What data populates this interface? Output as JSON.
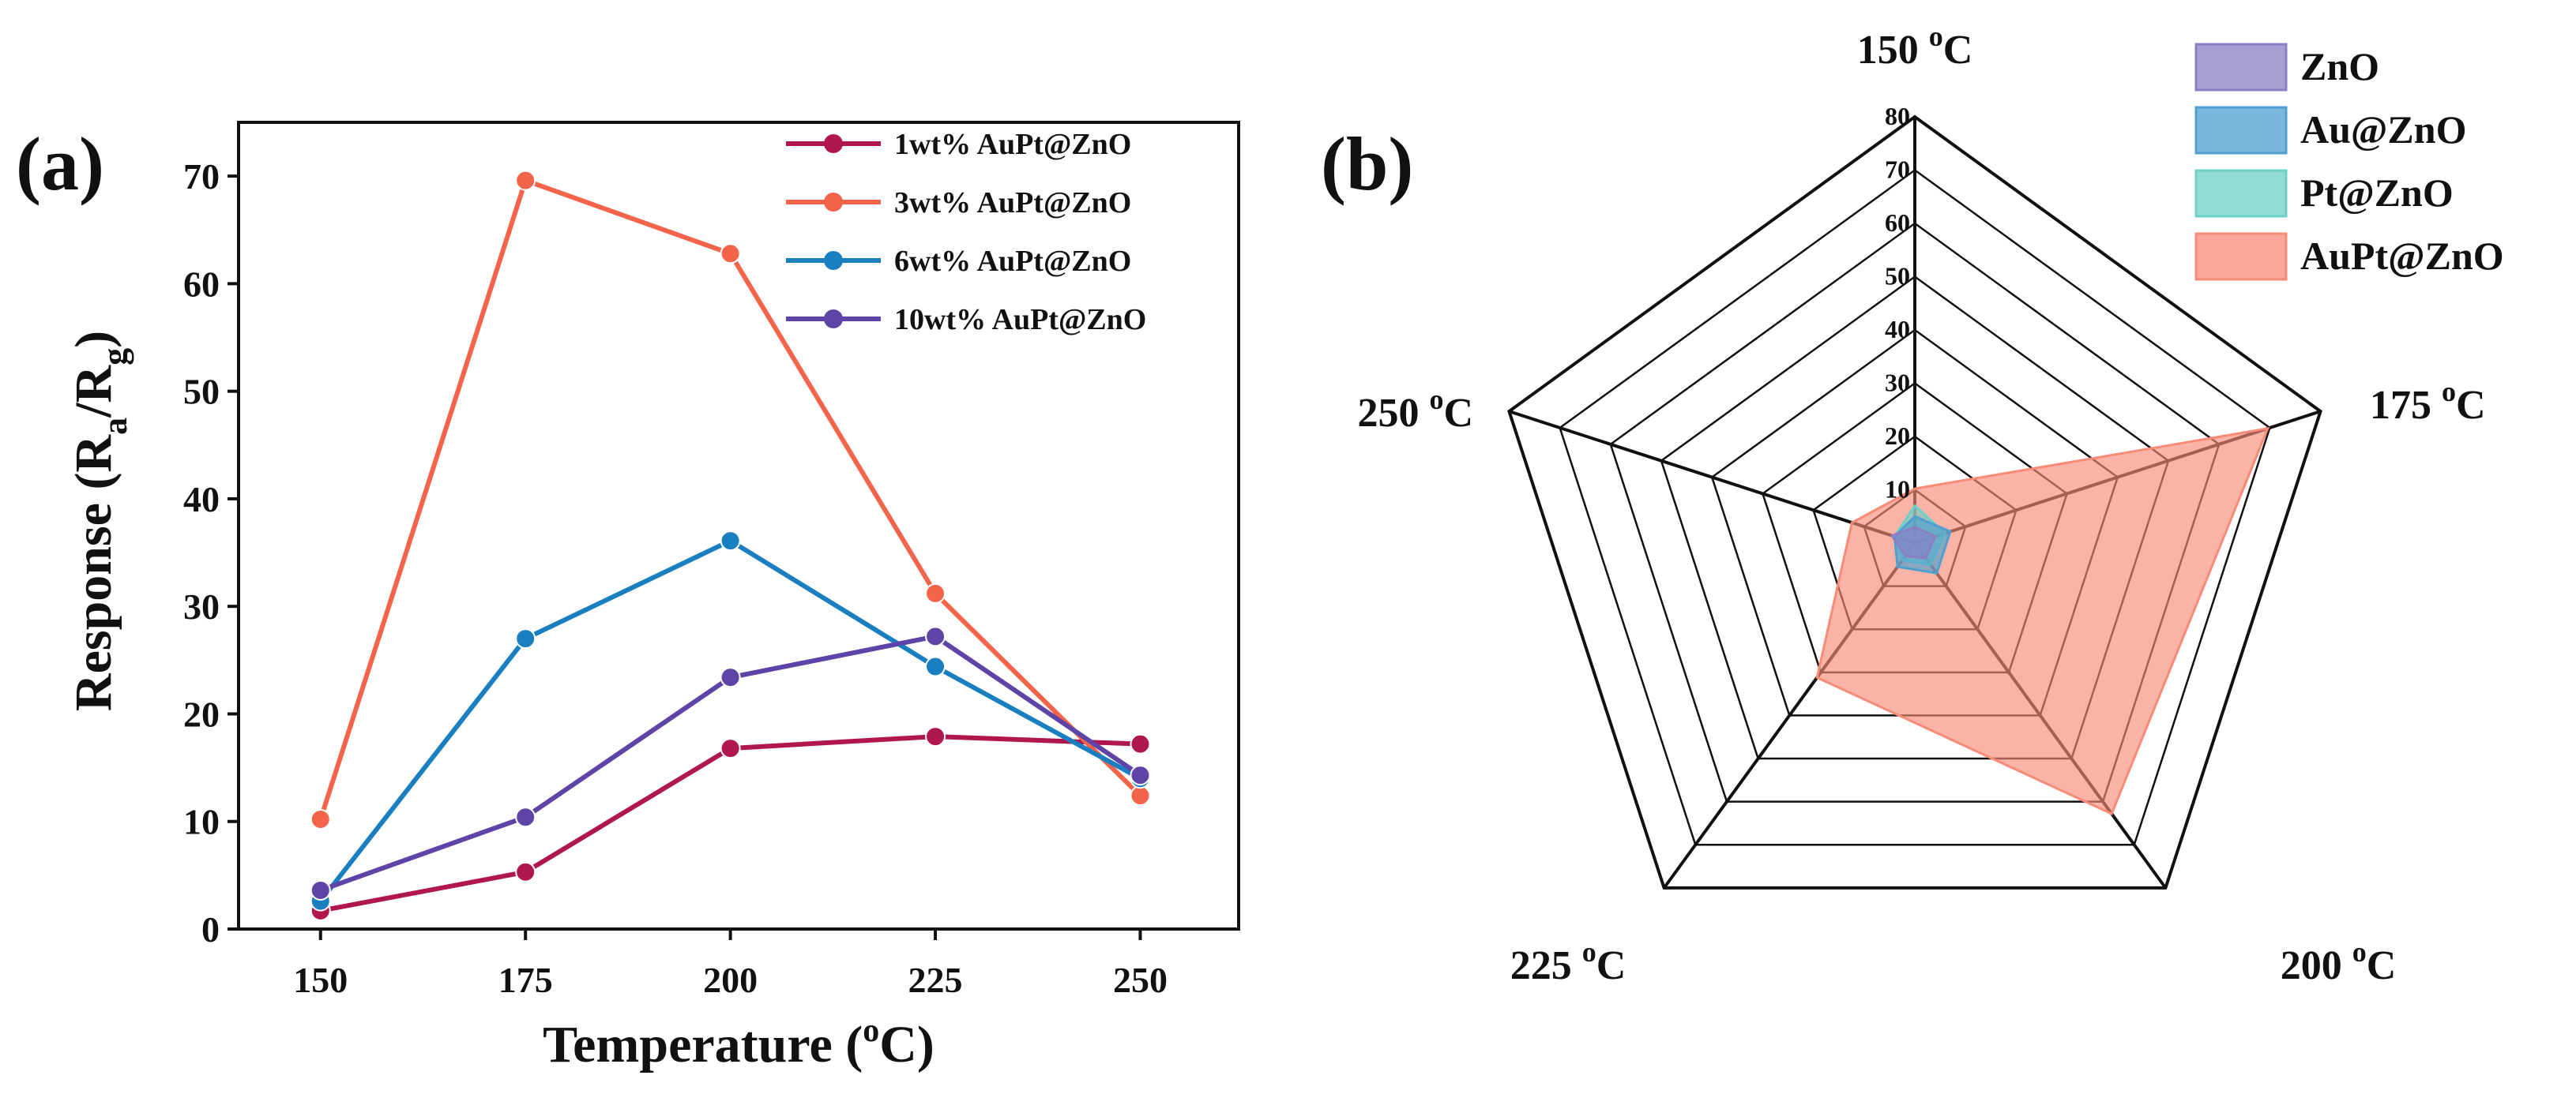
{
  "chart_data": [
    {
      "type": "line",
      "panel_label": "(a)",
      "xlabel": "Temperature (oC)",
      "xlabel_main": "Temperature (",
      "xlabel_sup": "o",
      "xlabel_end": "C)",
      "ylabel": "Response (Ra/Rg)",
      "ylabel_main": "Response (R",
      "ylabel_sub1": "a",
      "ylabel_mid": "/R",
      "ylabel_sub2": "g",
      "ylabel_end": ")",
      "x": [
        150,
        175,
        200,
        225,
        250
      ],
      "x_tick_labels": [
        "150",
        "175",
        "200",
        "225",
        "250"
      ],
      "xlim": [
        140,
        262
      ],
      "ylim": [
        0,
        75
      ],
      "y_ticks": [
        0,
        10,
        20,
        30,
        40,
        50,
        60,
        70
      ],
      "y_tick_labels": [
        "0",
        "10",
        "20",
        "30",
        "40",
        "50",
        "60",
        "70"
      ],
      "legend_position": "top-right",
      "series": [
        {
          "name": "1wt% AuPt@ZnO",
          "color": "#b0174f",
          "values": [
            1.7,
            5.3,
            16.8,
            17.9,
            17.2
          ]
        },
        {
          "name": "3wt% AuPt@ZnO",
          "color": "#f4644a",
          "values": [
            10.2,
            69.6,
            62.8,
            31.2,
            12.4
          ]
        },
        {
          "name": "6wt% AuPt@ZnO",
          "color": "#1a7fc0",
          "values": [
            2.6,
            27.0,
            36.1,
            24.4,
            14.0
          ]
        },
        {
          "name": "10wt% AuPt@ZnO",
          "color": "#5e44a6",
          "values": [
            3.6,
            10.4,
            23.4,
            27.2,
            14.3
          ]
        }
      ]
    },
    {
      "type": "radar",
      "panel_label": "(b)",
      "axes": [
        "150 oC",
        "175 oC",
        "200 oC",
        "225 oC",
        "250 oC"
      ],
      "axis_numbers": [
        "150",
        "175",
        "200",
        "225",
        "250"
      ],
      "axis_sup": "o",
      "axis_unit": "C",
      "rmax": 80,
      "r_ticks": [
        10,
        20,
        30,
        40,
        50,
        60,
        70,
        80
      ],
      "r_tick_labels": [
        "10",
        "20",
        "30",
        "40",
        "50",
        "60",
        "70",
        "80"
      ],
      "legend_position": "top-right",
      "series": [
        {
          "name": "ZnO",
          "color": "#8b7fc4",
          "values": [
            3.0,
            4.0,
            3.5,
            3.0,
            4.5
          ]
        },
        {
          "name": "Au@ZnO",
          "color": "#4f9fd0",
          "values": [
            5.0,
            7.0,
            7.0,
            5.5,
            4.0
          ]
        },
        {
          "name": "Pt@ZnO",
          "color": "#6ed0c8",
          "values": [
            7.0,
            6.0,
            5.0,
            4.0,
            4.0
          ]
        },
        {
          "name": "AuPt@ZnO",
          "color": "#f88a78",
          "values": [
            10.2,
            69.6,
            62.8,
            31.2,
            12.4
          ]
        }
      ]
    }
  ]
}
